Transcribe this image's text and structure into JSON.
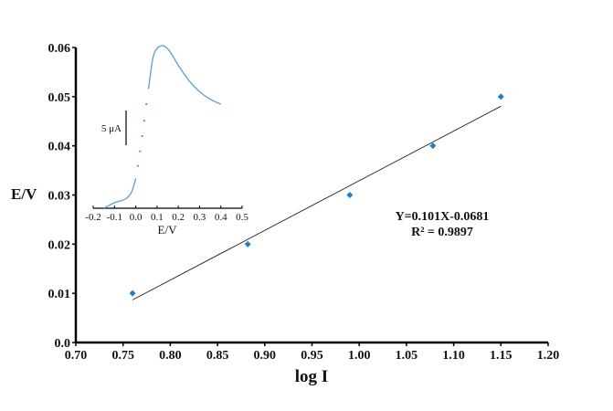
{
  "chart_data": {
    "type": "scatter",
    "xlabel": "log I",
    "ylabel": "E/V",
    "xlim": [
      0.7,
      1.2
    ],
    "ylim": [
      0.0,
      0.06
    ],
    "xticks": [
      "0.70",
      "0.75",
      "0.80",
      "0.85",
      "0.90",
      "0.95",
      "1.00",
      "1.05",
      "1.10",
      "1.15",
      "1.20"
    ],
    "yticks": [
      "0.0",
      "0.01",
      "0.02",
      "0.03",
      "0.04",
      "0.05",
      "0.06"
    ],
    "grid": false,
    "series": [
      {
        "name": "data",
        "color": "#1f7fc4",
        "x": [
          0.76,
          0.882,
          0.99,
          1.078,
          1.15
        ],
        "y": [
          0.01,
          0.02,
          0.03,
          0.04,
          0.05
        ]
      }
    ],
    "fit": {
      "slope": 0.101,
      "intercept": -0.0681,
      "x_range": [
        0.76,
        1.15
      ],
      "color": "#222222"
    },
    "annotations": [
      "Y=0.101X-0.0681",
      "R² = 0.9897"
    ],
    "inset": {
      "type": "line",
      "xlabel": "E/V",
      "xlim": [
        -0.2,
        0.5
      ],
      "xticks": [
        "-0.2",
        "-0.1",
        "0.0",
        "0.1",
        "0.2",
        "0.3",
        "0.4",
        "0.5"
      ],
      "scale_bar_label": "5 μA",
      "scale_bar_value": 5,
      "curve_color": "#5b9bd5",
      "dot_color": "#e06070",
      "lower_curve": {
        "x": [
          -0.15,
          -0.1,
          -0.05,
          -0.02,
          0.0
        ],
        "y": [
          0,
          0.8,
          1.3,
          2.3,
          4.3
        ]
      },
      "dots": {
        "x": [
          0.01,
          0.02,
          0.03,
          0.04,
          0.05
        ],
        "y": [
          6.1,
          8.2,
          10.4,
          12.6,
          15.0
        ]
      },
      "upper_curve": {
        "x": [
          0.06,
          0.08,
          0.1,
          0.13,
          0.16,
          0.2,
          0.25,
          0.3,
          0.35,
          0.4
        ],
        "y": [
          17.2,
          21.5,
          23.0,
          23.4,
          22.6,
          20.6,
          18.4,
          16.8,
          15.7,
          15.0
        ]
      }
    }
  }
}
